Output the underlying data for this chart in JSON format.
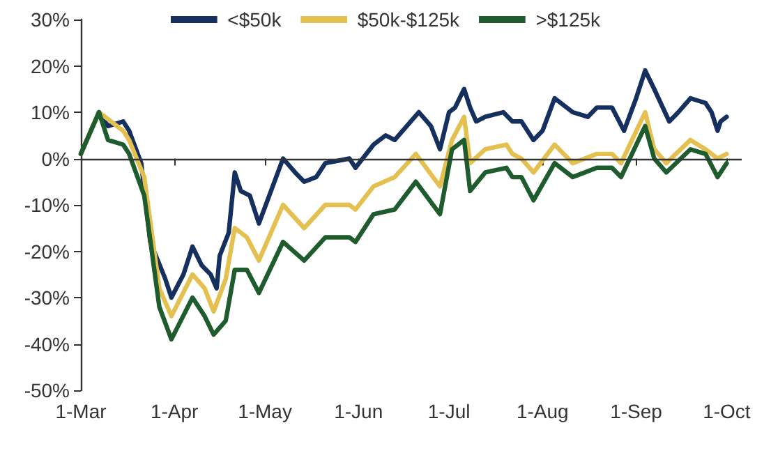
{
  "chart_data": {
    "type": "line",
    "xlim": [
      "--03-01",
      "--10-06"
    ],
    "xticks": [
      {
        "value": "--03-01",
        "label": "1-Mar"
      },
      {
        "value": "--04-01",
        "label": "1-Apr"
      },
      {
        "value": "--05-01",
        "label": "1-May"
      },
      {
        "value": "--06-01",
        "label": "1-Jun"
      },
      {
        "value": "--07-01",
        "label": "1-Jul"
      },
      {
        "value": "--08-01",
        "label": "1-Aug"
      },
      {
        "value": "--09-01",
        "label": "1-Sep"
      },
      {
        "value": "--10-01",
        "label": "1-Oct"
      }
    ],
    "ylim": [
      -50,
      30
    ],
    "yticks": [
      {
        "value": -50,
        "label": "-50%"
      },
      {
        "value": -40,
        "label": "-40%"
      },
      {
        "value": -30,
        "label": "-30%"
      },
      {
        "value": -20,
        "label": "-20%"
      },
      {
        "value": -10,
        "label": "-10%"
      },
      {
        "value": 0,
        "label": "0%"
      },
      {
        "value": 10,
        "label": "10%"
      },
      {
        "value": 20,
        "label": "20%"
      },
      {
        "value": 30,
        "label": "30%"
      }
    ],
    "ref_lines": [
      {
        "axis": "y",
        "value": 0,
        "color": "#333333",
        "line_style": "solid"
      }
    ],
    "grid": false,
    "legend": "top",
    "marker": "none",
    "line_style": "solid",
    "series": [
      {
        "name": "<$50k",
        "color": "#15305e",
        "x": [
          "--03-01",
          "--03-07",
          "--03-10",
          "--03-15",
          "--03-17",
          "--03-21",
          "--03-24",
          "--03-29",
          "--03-31",
          "--04-04",
          "--04-07",
          "--04-10",
          "--04-13",
          "--04-15",
          "--04-16",
          "--04-19",
          "--04-21",
          "--04-23",
          "--04-26",
          "--04-29",
          "--05-03",
          "--05-07",
          "--05-11",
          "--05-14",
          "--05-18",
          "--05-21",
          "--05-29",
          "--05-31",
          "--06-06",
          "--06-10",
          "--06-13",
          "--06-17",
          "--06-21",
          "--06-25",
          "--06-28",
          "--07-01",
          "--07-03",
          "--07-06",
          "--07-08",
          "--07-10",
          "--07-13",
          "--07-19",
          "--07-22",
          "--07-25",
          "--07-29",
          "--08-01",
          "--08-05",
          "--08-11",
          "--08-16",
          "--08-19",
          "--08-24",
          "--08-28",
          "--09-01",
          "--09-04",
          "--09-07",
          "--09-12",
          "--09-15",
          "--09-19",
          "--09-24",
          "--09-26",
          "--09-28",
          "--09-29",
          "--10-01"
        ],
        "values": [
          1,
          10,
          7,
          8,
          6,
          -1,
          -18,
          -26,
          -30,
          -25,
          -19,
          -23,
          -25,
          -28,
          -21,
          -16,
          -3,
          -7,
          -8,
          -14,
          -7,
          0,
          -3,
          -5,
          -4,
          -1,
          0,
          -2,
          3,
          5,
          4,
          7,
          10,
          7,
          2,
          10,
          11,
          15,
          11,
          8,
          9,
          10,
          8,
          8,
          4,
          6,
          13,
          10,
          9,
          11,
          11,
          6,
          13,
          19,
          15,
          8,
          10,
          13,
          12,
          10,
          6,
          8,
          9
        ]
      },
      {
        "name": "$50k-$125k",
        "color": "#e3c050",
        "x": [
          "--03-01",
          "--03-07",
          "--03-15",
          "--03-17",
          "--03-22",
          "--03-27",
          "--03-31",
          "--04-07",
          "--04-11",
          "--04-14",
          "--04-18",
          "--04-21",
          "--04-25",
          "--04-29",
          "--05-07",
          "--05-14",
          "--05-21",
          "--05-29",
          "--05-31",
          "--06-06",
          "--06-13",
          "--06-20",
          "--06-28",
          "--07-02",
          "--07-06",
          "--07-08",
          "--07-13",
          "--07-20",
          "--07-22",
          "--07-25",
          "--07-29",
          "--08-05",
          "--08-11",
          "--08-19",
          "--08-24",
          "--08-27",
          "--09-04",
          "--09-07",
          "--09-11",
          "--09-19",
          "--09-24",
          "--09-28",
          "--10-01"
        ],
        "values": [
          1,
          10,
          6,
          4,
          -4,
          -28,
          -34,
          -25,
          -28,
          -33,
          -26,
          -15,
          -17,
          -22,
          -10,
          -15,
          -10,
          -10,
          -11,
          -6,
          -4,
          1,
          -6,
          4,
          9,
          -1,
          2,
          3,
          1,
          0,
          -3,
          3,
          -1,
          1,
          1,
          -1,
          10,
          2,
          -1,
          4,
          2,
          0,
          1
        ]
      },
      {
        "name": ">$125k",
        "color": "#1e5c2e",
        "x": [
          "--03-01",
          "--03-07",
          "--03-10",
          "--03-15",
          "--03-17",
          "--03-22",
          "--03-27",
          "--03-31",
          "--04-07",
          "--04-11",
          "--04-14",
          "--04-18",
          "--04-21",
          "--04-25",
          "--04-29",
          "--05-07",
          "--05-14",
          "--05-21",
          "--05-29",
          "--05-31",
          "--06-06",
          "--06-13",
          "--06-20",
          "--06-28",
          "--07-02",
          "--07-06",
          "--07-08",
          "--07-13",
          "--07-20",
          "--07-22",
          "--07-25",
          "--07-29",
          "--08-05",
          "--08-11",
          "--08-19",
          "--08-24",
          "--08-27",
          "--09-04",
          "--09-07",
          "--09-11",
          "--09-19",
          "--09-24",
          "--09-28",
          "--10-01"
        ],
        "values": [
          1,
          10,
          4,
          3,
          1,
          -8,
          -32,
          -39,
          -30,
          -34,
          -38,
          -35,
          -24,
          -24,
          -29,
          -18,
          -22,
          -17,
          -17,
          -18,
          -12,
          -11,
          -5,
          -12,
          2,
          4,
          -7,
          -3,
          -2,
          -4,
          -4,
          -9,
          -1,
          -4,
          -2,
          -2,
          -4,
          7,
          0,
          -3,
          2,
          1,
          -4,
          -1
        ]
      }
    ]
  }
}
